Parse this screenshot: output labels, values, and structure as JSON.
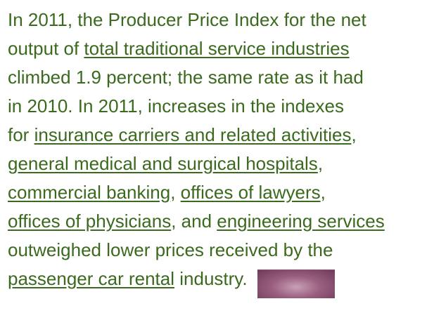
{
  "paragraph": {
    "lines": [
      [
        {
          "text": "In 2011, the Producer Price Index for the net",
          "link": false
        }
      ],
      [
        {
          "text": "output of ",
          "link": false
        },
        {
          "text": "total traditional service industries",
          "link": true
        }
      ],
      [
        {
          "text": "climbed 1.9 percent; the same rate as it had",
          "link": false
        }
      ],
      [
        {
          "text": "in 2010. In 2011, increases in the indexes",
          "link": false
        }
      ],
      [
        {
          "text": "for ",
          "link": false
        },
        {
          "text": "insurance carriers and related activities",
          "link": true
        },
        {
          "text": ",",
          "link": false
        }
      ],
      [
        {
          "text": "general medical and surgical hospitals",
          "link": true
        },
        {
          "text": ",",
          "link": false
        }
      ],
      [
        {
          "text": "commercial banking",
          "link": true
        },
        {
          "text": ", ",
          "link": false
        },
        {
          "text": "offices of lawyers",
          "link": true
        },
        {
          "text": ",",
          "link": false
        }
      ],
      [
        {
          "text": "offices of physicians",
          "link": true
        },
        {
          "text": ", and ",
          "link": false
        },
        {
          "text": "engineering services",
          "link": true
        }
      ],
      [
        {
          "text": "outweighed lower prices received by the",
          "link": false
        }
      ],
      [
        {
          "text": "passenger car rental",
          "link": true
        },
        {
          "text": " industry.",
          "link": false
        }
      ]
    ]
  }
}
